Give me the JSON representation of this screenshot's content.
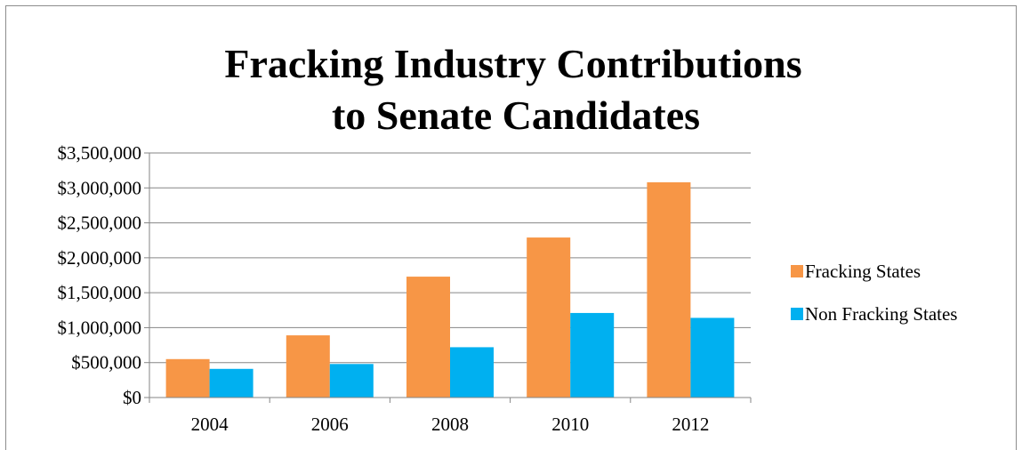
{
  "chart_data": {
    "type": "bar",
    "title_lines": [
      "Fracking Industry Contributions",
      "to Senate Candidates"
    ],
    "categories": [
      "2004",
      "2006",
      "2008",
      "2010",
      "2012"
    ],
    "series": [
      {
        "name": "Fracking States",
        "color": "#f79646",
        "values": [
          550000,
          890000,
          1730000,
          2290000,
          3080000
        ]
      },
      {
        "name": "Non Fracking States",
        "color": "#00b0f0",
        "values": [
          410000,
          480000,
          720000,
          1210000,
          1140000
        ]
      }
    ],
    "ylim": [
      0,
      3500000
    ],
    "y_ticks": [
      0,
      500000,
      1000000,
      1500000,
      2000000,
      2500000,
      3000000,
      3500000
    ],
    "y_tick_labels": [
      "$0",
      "$500,000",
      "$1,000,000",
      "$1,500,000",
      "$2,000,000",
      "$2,500,000",
      "$3,000,000",
      "$3,500,000"
    ],
    "grid": true,
    "legend_position": "right"
  }
}
